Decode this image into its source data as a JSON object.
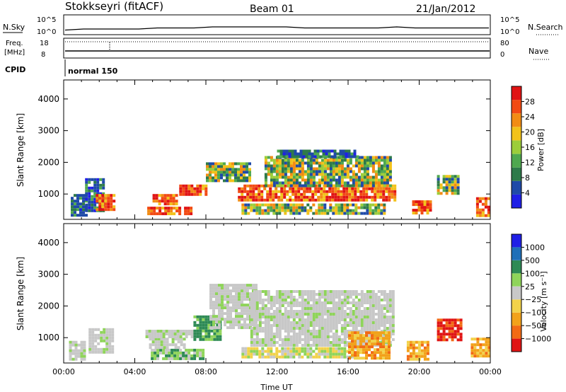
{
  "header": {
    "title": "Stokkseyri (fitACF)",
    "beam": "Beam 01",
    "date": "21/Jan/2012"
  },
  "top_panel": {
    "nsky_label": "N.Sky",
    "nsearch_label": "N.Search",
    "nsky_ticks": [
      "10^5",
      "10^0"
    ],
    "nsearch_ticks": [
      "10^5",
      "10^0"
    ],
    "freq_label": "Freq.",
    "freq_unit": "[MHz]",
    "freq_ticks": [
      "18",
      "8"
    ],
    "nave_label": "Nave",
    "nave_ticks": [
      "80",
      "0"
    ],
    "cpid_label": "CPID",
    "cpid_value": "normal 150"
  },
  "colors": {
    "power": [
      "#1f1fe6",
      "#1f4aa8",
      "#2e7a4a",
      "#4fa84f",
      "#9ccd3a",
      "#f2c21a",
      "#f28c14",
      "#f24a14",
      "#e01414"
    ],
    "velocity": [
      "#1f1fe6",
      "#1f6fb8",
      "#2e8a55",
      "#8fd45a",
      "#c8c8c8",
      "#f2d24a",
      "#f2a21a",
      "#f26a14",
      "#e01414"
    ]
  },
  "chart_data": [
    {
      "type": "heatmap",
      "title": "",
      "xlabel": "",
      "ylabel": "Slant Range [km]",
      "ylim": [
        200,
        4600
      ],
      "xlim": [
        "00:00",
        "24:00"
      ],
      "yticks": [
        "1000",
        "2000",
        "3000",
        "4000"
      ],
      "colorbar": {
        "label": "Power [dB]",
        "ticks": [
          "4",
          "8",
          "12",
          "16",
          "20",
          "24",
          "28"
        ],
        "range": [
          0,
          30
        ]
      },
      "regions": [
        {
          "t0": 0.4,
          "t1": 1.2,
          "r0": 300,
          "r1": 1000,
          "level": "low"
        },
        {
          "t0": 1.2,
          "t1": 2.2,
          "r0": 500,
          "r1": 1500,
          "level": "low"
        },
        {
          "t0": 1.8,
          "t1": 2.9,
          "r0": 500,
          "r1": 1000,
          "level": "high"
        },
        {
          "t0": 4.7,
          "t1": 7.2,
          "r0": 350,
          "r1": 600,
          "level": "high"
        },
        {
          "t0": 5.0,
          "t1": 6.3,
          "r0": 700,
          "r1": 1000,
          "level": "high"
        },
        {
          "t0": 6.5,
          "t1": 8.0,
          "r0": 950,
          "r1": 1300,
          "level": "high"
        },
        {
          "t0": 8.0,
          "t1": 10.5,
          "r0": 1400,
          "r1": 2000,
          "level": "mid"
        },
        {
          "t0": 9.8,
          "t1": 18.6,
          "r0": 800,
          "r1": 1300,
          "level": "high"
        },
        {
          "t0": 11.3,
          "t1": 18.4,
          "r0": 1300,
          "r1": 2200,
          "level": "mid"
        },
        {
          "t0": 12.0,
          "t1": 16.5,
          "r0": 2200,
          "r1": 2400,
          "level": "low"
        },
        {
          "t0": 10.0,
          "t1": 18.0,
          "r0": 350,
          "r1": 700,
          "level": "mid"
        },
        {
          "t0": 19.6,
          "t1": 20.6,
          "r0": 400,
          "r1": 800,
          "level": "high"
        },
        {
          "t0": 21.0,
          "t1": 22.2,
          "r0": 1000,
          "r1": 1600,
          "level": "mid"
        },
        {
          "t0": 23.2,
          "t1": 23.9,
          "r0": 350,
          "r1": 900,
          "level": "high"
        }
      ]
    },
    {
      "type": "heatmap",
      "title": "",
      "xlabel": "Time UT",
      "ylabel": "Slant Range [km]",
      "ylim": [
        200,
        4600
      ],
      "xlim": [
        "00:00",
        "24:00"
      ],
      "xticks": [
        "00:00",
        "04:00",
        "08:00",
        "12:00",
        "16:00",
        "20:00",
        "00:00"
      ],
      "yticks": [
        "1000",
        "2000",
        "3000",
        "4000"
      ],
      "colorbar": {
        "label": "Velocity [m s⁻¹]",
        "ticks": [
          "1000",
          "500",
          "100",
          "25",
          "−25",
          "−100",
          "−500",
          "−1000"
        ],
        "range": [
          -1200,
          1200
        ]
      },
      "regions": [
        {
          "t0": 0.3,
          "t1": 1.2,
          "r0": 300,
          "r1": 900,
          "level": "neutral"
        },
        {
          "t0": 1.4,
          "t1": 2.8,
          "r0": 500,
          "r1": 1300,
          "level": "neutral"
        },
        {
          "t0": 4.9,
          "t1": 7.8,
          "r0": 300,
          "r1": 650,
          "level": "green"
        },
        {
          "t0": 4.8,
          "t1": 6.8,
          "r0": 700,
          "r1": 1000,
          "level": "neutral"
        },
        {
          "t0": 4.6,
          "t1": 7.3,
          "r0": 1000,
          "r1": 1250,
          "level": "neutral"
        },
        {
          "t0": 7.3,
          "t1": 8.8,
          "r0": 900,
          "r1": 1700,
          "level": "darkgreen"
        },
        {
          "t0": 8.2,
          "t1": 10.8,
          "r0": 1300,
          "r1": 2700,
          "level": "neutral"
        },
        {
          "t0": 10.5,
          "t1": 18.6,
          "r0": 800,
          "r1": 2500,
          "level": "neutral"
        },
        {
          "t0": 10.0,
          "t1": 16.5,
          "r0": 350,
          "r1": 700,
          "level": "yellow"
        },
        {
          "t0": 16.0,
          "t1": 18.3,
          "r0": 350,
          "r1": 1200,
          "level": "orange"
        },
        {
          "t0": 19.3,
          "t1": 20.5,
          "r0": 350,
          "r1": 900,
          "level": "orange"
        },
        {
          "t0": 21.0,
          "t1": 22.3,
          "r0": 900,
          "r1": 1600,
          "level": "red"
        },
        {
          "t0": 22.9,
          "t1": 23.9,
          "r0": 400,
          "r1": 1000,
          "level": "orange"
        }
      ]
    },
    {
      "type": "line",
      "title": "",
      "xlabel": "",
      "ylabel": "N.Sky",
      "series": [
        {
          "name": "",
          "values": [
            1,
            2,
            2,
            2,
            2,
            3,
            3,
            3,
            4,
            4,
            4,
            4,
            4,
            3,
            3,
            3,
            3,
            3,
            4,
            3,
            3,
            3,
            3,
            3
          ]
        }
      ]
    }
  ]
}
